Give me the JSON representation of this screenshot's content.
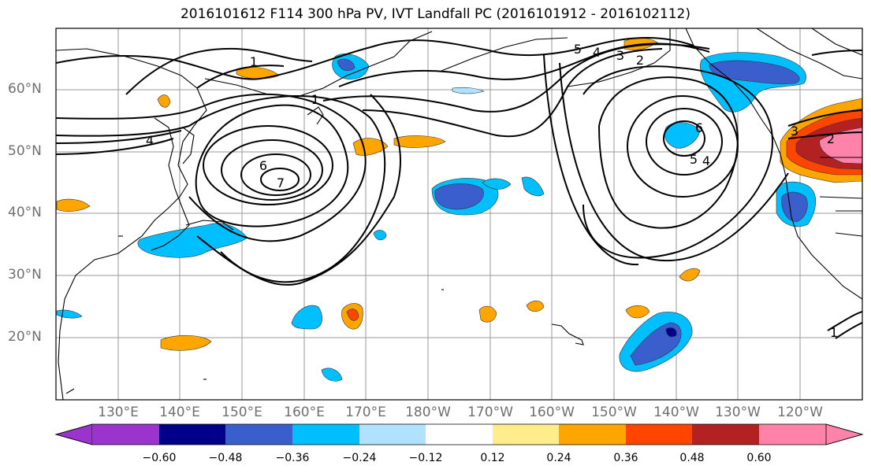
{
  "title": "2016101612 F114 300 hPa PV, IVT Landfall PC (2016101912 - 2016102112)",
  "map": {
    "latitude_labels": [
      "60°N",
      "50°N",
      "40°N",
      "30°N",
      "20°N"
    ],
    "longitude_labels": [
      "130°E",
      "140°E",
      "150°E",
      "160°E",
      "170°E",
      "180°W",
      "170°W",
      "160°W",
      "150°W",
      "140°W",
      "130°W",
      "120°W"
    ],
    "pv_contour_labels": [
      "1",
      "6",
      "7",
      "4",
      "5",
      "4",
      "3",
      "2",
      "1",
      "6",
      "5",
      "4",
      "3",
      "2",
      "1"
    ],
    "land_color": "#000000",
    "grid_color": "#9a9a9a"
  },
  "colorbar": {
    "colors": [
      "#9a34cc",
      "#00008b",
      "#3a5fcd",
      "#00bfff",
      "#b0e2ff",
      "#ffffff",
      "#ffec8b",
      "#ffa500",
      "#ff4500",
      "#b22222",
      "#ff82ab"
    ],
    "extend": "both",
    "tick_labels": [
      "−0.60",
      "−0.48",
      "−0.36",
      "−0.24",
      "−0.12",
      "0.12",
      "0.24",
      "0.36",
      "0.48",
      "0.60"
    ]
  }
}
